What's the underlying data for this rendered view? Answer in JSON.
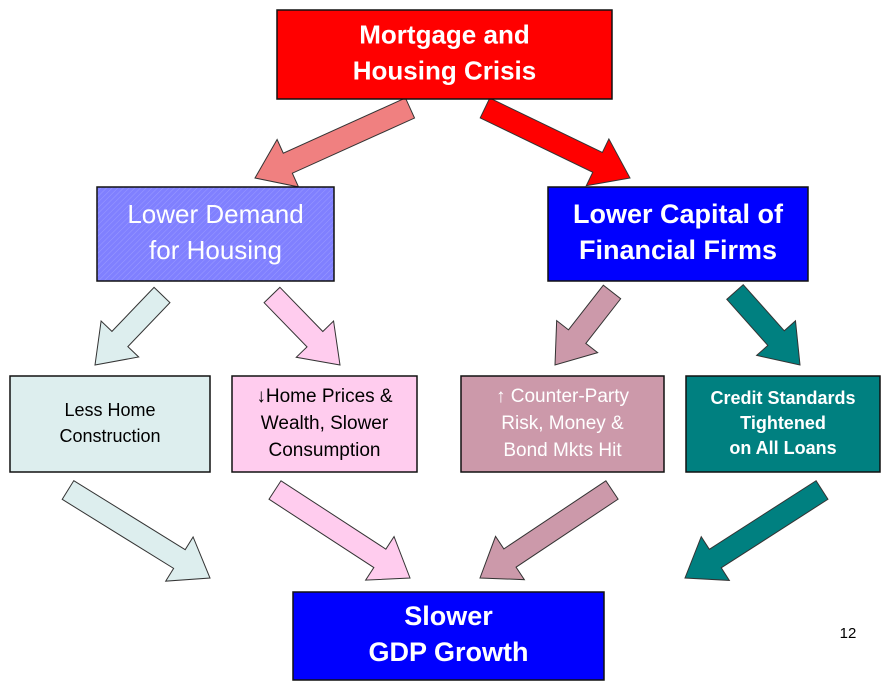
{
  "nodes": [
    {
      "lines": [
        "Mortgage and",
        "Housing Crisis"
      ]
    },
    {
      "lines": [
        "Lower Demand",
        "for Housing"
      ]
    },
    {
      "lines": [
        "Lower Capital of",
        "Financial Firms"
      ]
    },
    {
      "lines": [
        "Less Home",
        "Construction"
      ]
    },
    {
      "lines": [
        "↓Home Prices &",
        "Wealth, Slower",
        "Consumption"
      ]
    },
    {
      "lines": [
        "↑ Counter-Party",
        "Risk, Money &",
        "Bond Mkts Hit"
      ]
    },
    {
      "lines": [
        "Credit Standards",
        "Tightened",
        "on All Loans"
      ]
    },
    {
      "lines": [
        "Slower",
        "GDP Growth"
      ]
    }
  ],
  "page_number": "12"
}
